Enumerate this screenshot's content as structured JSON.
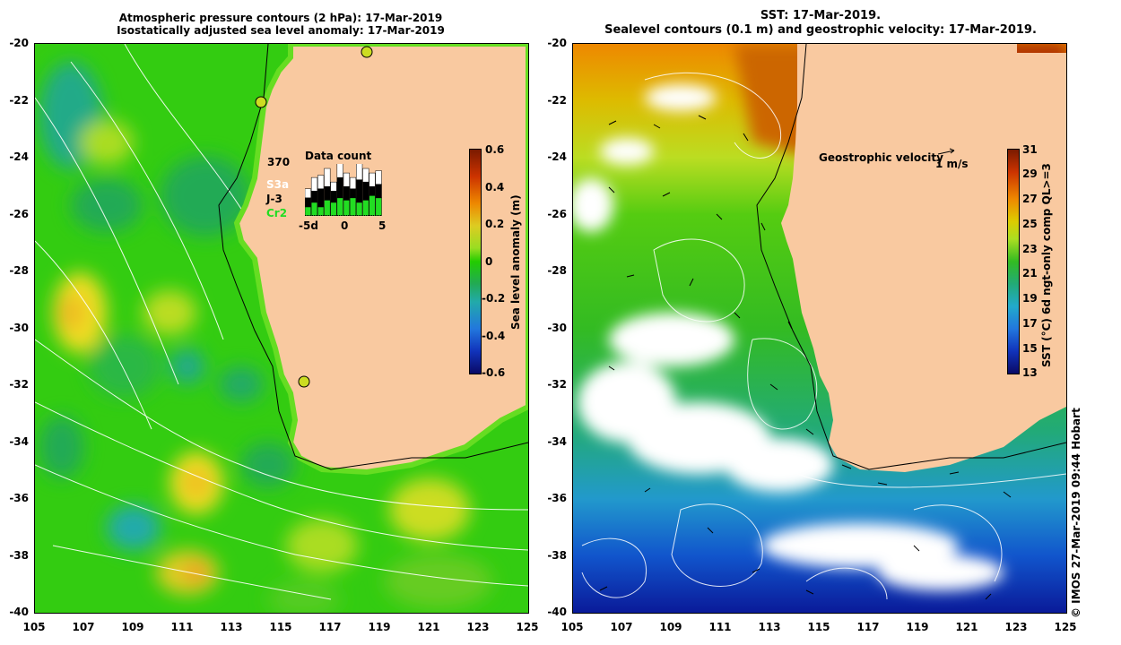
{
  "left_panel": {
    "title_line1": "Atmospheric pressure contours (2 hPa): 17-Mar-2019",
    "title_line2": "Isostatically adjusted sea level anomaly: 17-Mar-2019",
    "y_ticks": [
      "-20",
      "-22",
      "-24",
      "-26",
      "-28",
      "-30",
      "-32",
      "-34",
      "-36",
      "-38",
      "-40"
    ],
    "x_ticks": [
      "105",
      "107",
      "109",
      "111",
      "113",
      "115",
      "117",
      "119",
      "121",
      "123",
      "125"
    ],
    "colorbar": {
      "title": "Sea level anomaly (m)",
      "ticks": [
        "0.6",
        "0.4",
        "0.2",
        "0",
        "-0.2",
        "-0.4",
        "-0.6"
      ]
    },
    "data_count": {
      "title": "Data count",
      "max_label": "370",
      "x_ticks": [
        "-5d",
        "0",
        "5"
      ],
      "missions": [
        {
          "label": "S3a",
          "color": "#ffffff"
        },
        {
          "label": "J-3",
          "color": "#000000"
        },
        {
          "label": "Cr2",
          "color": "#22dd22"
        }
      ],
      "bars_cr2": [
        0.2,
        0.3,
        0.2,
        0.35,
        0.3,
        0.4,
        0.35,
        0.4,
        0.3,
        0.35,
        0.45,
        0.4
      ],
      "bars_j3": [
        0.2,
        0.25,
        0.4,
        0.3,
        0.25,
        0.45,
        0.3,
        0.2,
        0.5,
        0.4,
        0.2,
        0.3
      ],
      "bars_s3a": [
        0.2,
        0.3,
        0.3,
        0.4,
        0.2,
        0.35,
        0.3,
        0.25,
        0.4,
        0.3,
        0.3,
        0.3
      ]
    }
  },
  "right_panel": {
    "title_line1": "SST: 17-Mar-2019.",
    "title_line2": "Sealevel contours (0.1 m) and geostrophic velocity: 17-Mar-2019.",
    "y_ticks": [
      "-20",
      "-22",
      "-24",
      "-26",
      "-28",
      "-30",
      "-32",
      "-34",
      "-36",
      "-38",
      "-40"
    ],
    "x_ticks": [
      "105",
      "107",
      "109",
      "111",
      "113",
      "115",
      "117",
      "119",
      "121",
      "123",
      "125"
    ],
    "velocity_legend": {
      "label": "Geostrophic velocity",
      "scale": "1 m/s"
    },
    "colorbar": {
      "title": "SST (°C) 6d ngt-only comp QL>=3",
      "ticks": [
        "31",
        "29",
        "27",
        "25",
        "23",
        "21",
        "19",
        "17",
        "15",
        "13"
      ]
    }
  },
  "credit": "© IMOS 27-Mar-2019 09:44 Hobart",
  "colors": {
    "land": "#f9c9a0",
    "sla_mid": "#22cc00",
    "sst_warm": "#b03000"
  }
}
